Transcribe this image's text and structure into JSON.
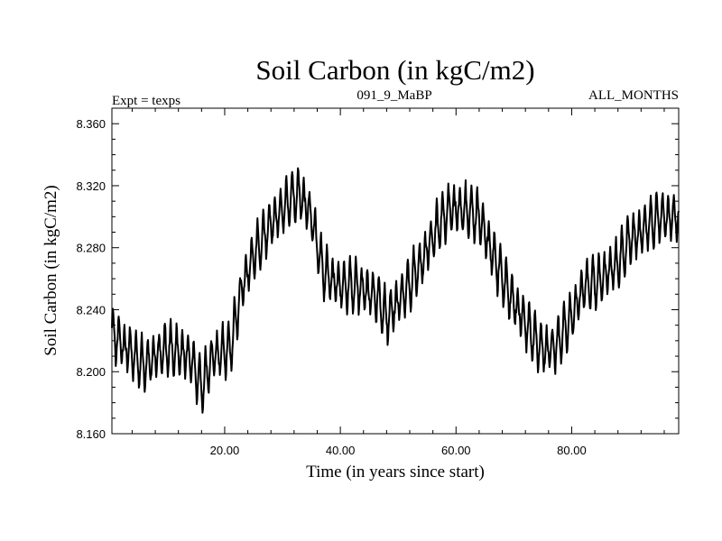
{
  "chart_data": {
    "type": "line",
    "title": "Soil Carbon (in kgC/m2)",
    "subtitle_left": "Expt = texps",
    "subtitle_center": "091_9_MaBP",
    "subtitle_right": "ALL_MONTHS",
    "xlabel": "Time (in years since start)",
    "ylabel": "Soil Carbon (in kgC/m2)",
    "xlim": [
      0.5,
      98.5
    ],
    "ylim": [
      8.16,
      8.37
    ],
    "x_ticks": [
      "20.00",
      "40.00",
      "60.00",
      "80.00"
    ],
    "x_tick_values": [
      20,
      40,
      60,
      80
    ],
    "y_ticks": [
      "8.160",
      "8.200",
      "8.240",
      "8.280",
      "8.320",
      "8.360"
    ],
    "y_tick_values": [
      8.16,
      8.2,
      8.24,
      8.28,
      8.32,
      8.36
    ],
    "series": [
      {
        "name": "Soil Carbon",
        "sampling": "monthly (12 per year), seasonal cycle superimposed on trend",
        "seasonal_amplitude": 0.032,
        "trend_x": [
          0.5,
          3,
          6,
          10,
          14,
          16,
          18,
          21,
          23,
          25,
          28,
          31,
          33,
          35,
          37,
          40,
          43,
          46,
          48,
          50,
          54,
          57,
          59,
          61,
          64,
          67,
          70,
          73,
          75,
          77,
          80,
          82,
          85,
          88,
          90,
          92,
          95,
          98.5
        ],
        "trend_y": [
          8.225,
          8.215,
          8.205,
          8.215,
          8.21,
          8.19,
          8.21,
          8.215,
          8.255,
          8.275,
          8.295,
          8.31,
          8.315,
          8.3,
          8.265,
          8.255,
          8.255,
          8.25,
          8.235,
          8.245,
          8.27,
          8.295,
          8.305,
          8.305,
          8.3,
          8.27,
          8.245,
          8.225,
          8.215,
          8.215,
          8.235,
          8.255,
          8.26,
          8.27,
          8.285,
          8.29,
          8.3,
          8.3
        ]
      }
    ]
  }
}
